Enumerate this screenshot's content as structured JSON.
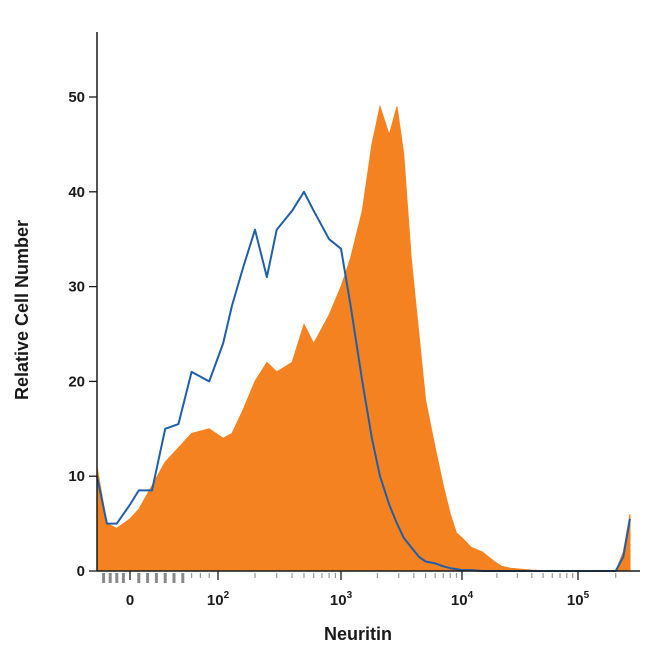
{
  "chart_data": {
    "type": "area",
    "xlabel": "Neuritin",
    "ylabel": "Relative Cell Number",
    "x_scale": "biexponential (logicle)",
    "ylim": [
      0,
      55
    ],
    "y_ticks": [
      0,
      10,
      20,
      30,
      40,
      50
    ],
    "x_ticks": [
      {
        "value": 0,
        "label": "0"
      },
      {
        "value": 100,
        "base": "10",
        "exp": "2"
      },
      {
        "value": 1000,
        "base": "10",
        "exp": "3"
      },
      {
        "value": 10000,
        "base": "10",
        "exp": "4"
      },
      {
        "value": 100000,
        "base": "10",
        "exp": "5"
      }
    ],
    "grid": false,
    "legend": "none",
    "series": [
      {
        "style": "filled",
        "color": "#F58220",
        "x": [
          -50,
          -35,
          -20,
          0,
          10,
          25,
          40,
          55,
          70,
          90,
          110,
          130,
          160,
          200,
          250,
          300,
          400,
          500,
          600,
          800,
          1000,
          1200,
          1500,
          1800,
          2100,
          2500,
          2900,
          3300,
          3800,
          4400,
          5000,
          6000,
          7000,
          8000,
          9000,
          10000,
          12000,
          15000,
          19000,
          22000,
          26000,
          32000,
          40000,
          60000,
          100000,
          150000,
          200000,
          230000,
          260000
        ],
        "y": [
          11,
          5,
          4.5,
          5.5,
          6.5,
          9,
          11.5,
          13,
          14.5,
          15,
          14,
          14.5,
          17,
          20,
          22,
          21,
          22,
          26,
          24,
          27,
          30,
          33,
          38,
          45,
          49,
          46,
          49,
          44,
          33,
          25,
          18,
          13,
          9,
          6,
          4,
          3.5,
          2.5,
          2,
          1,
          0.5,
          0.3,
          0.2,
          0.1,
          0,
          0,
          0,
          0,
          2,
          6
        ]
      },
      {
        "style": "line",
        "color": "#1F5FA8",
        "x": [
          -50,
          -35,
          -20,
          0,
          10,
          25,
          40,
          55,
          70,
          90,
          110,
          130,
          160,
          200,
          250,
          300,
          400,
          500,
          600,
          800,
          1000,
          1200,
          1500,
          1800,
          2100,
          2500,
          2900,
          3300,
          3800,
          4400,
          5000,
          6000,
          7000,
          8000,
          9000,
          10000,
          12000,
          15000,
          19000,
          22000,
          26000,
          32000,
          40000,
          60000,
          100000,
          150000,
          200000,
          230000,
          260000
        ],
        "y": [
          10,
          5,
          5,
          7,
          8.5,
          8.5,
          15,
          15.5,
          21,
          20,
          24,
          28,
          32,
          36,
          31,
          36,
          38,
          40,
          38,
          35,
          34,
          28,
          20,
          14,
          10,
          7,
          5,
          3.5,
          2.5,
          1.5,
          1,
          0.8,
          0.5,
          0.3,
          0.2,
          0.1,
          0.1,
          0,
          0,
          0,
          0,
          0,
          0,
          0,
          0,
          0,
          0,
          1.5,
          5.5
        ]
      }
    ]
  }
}
